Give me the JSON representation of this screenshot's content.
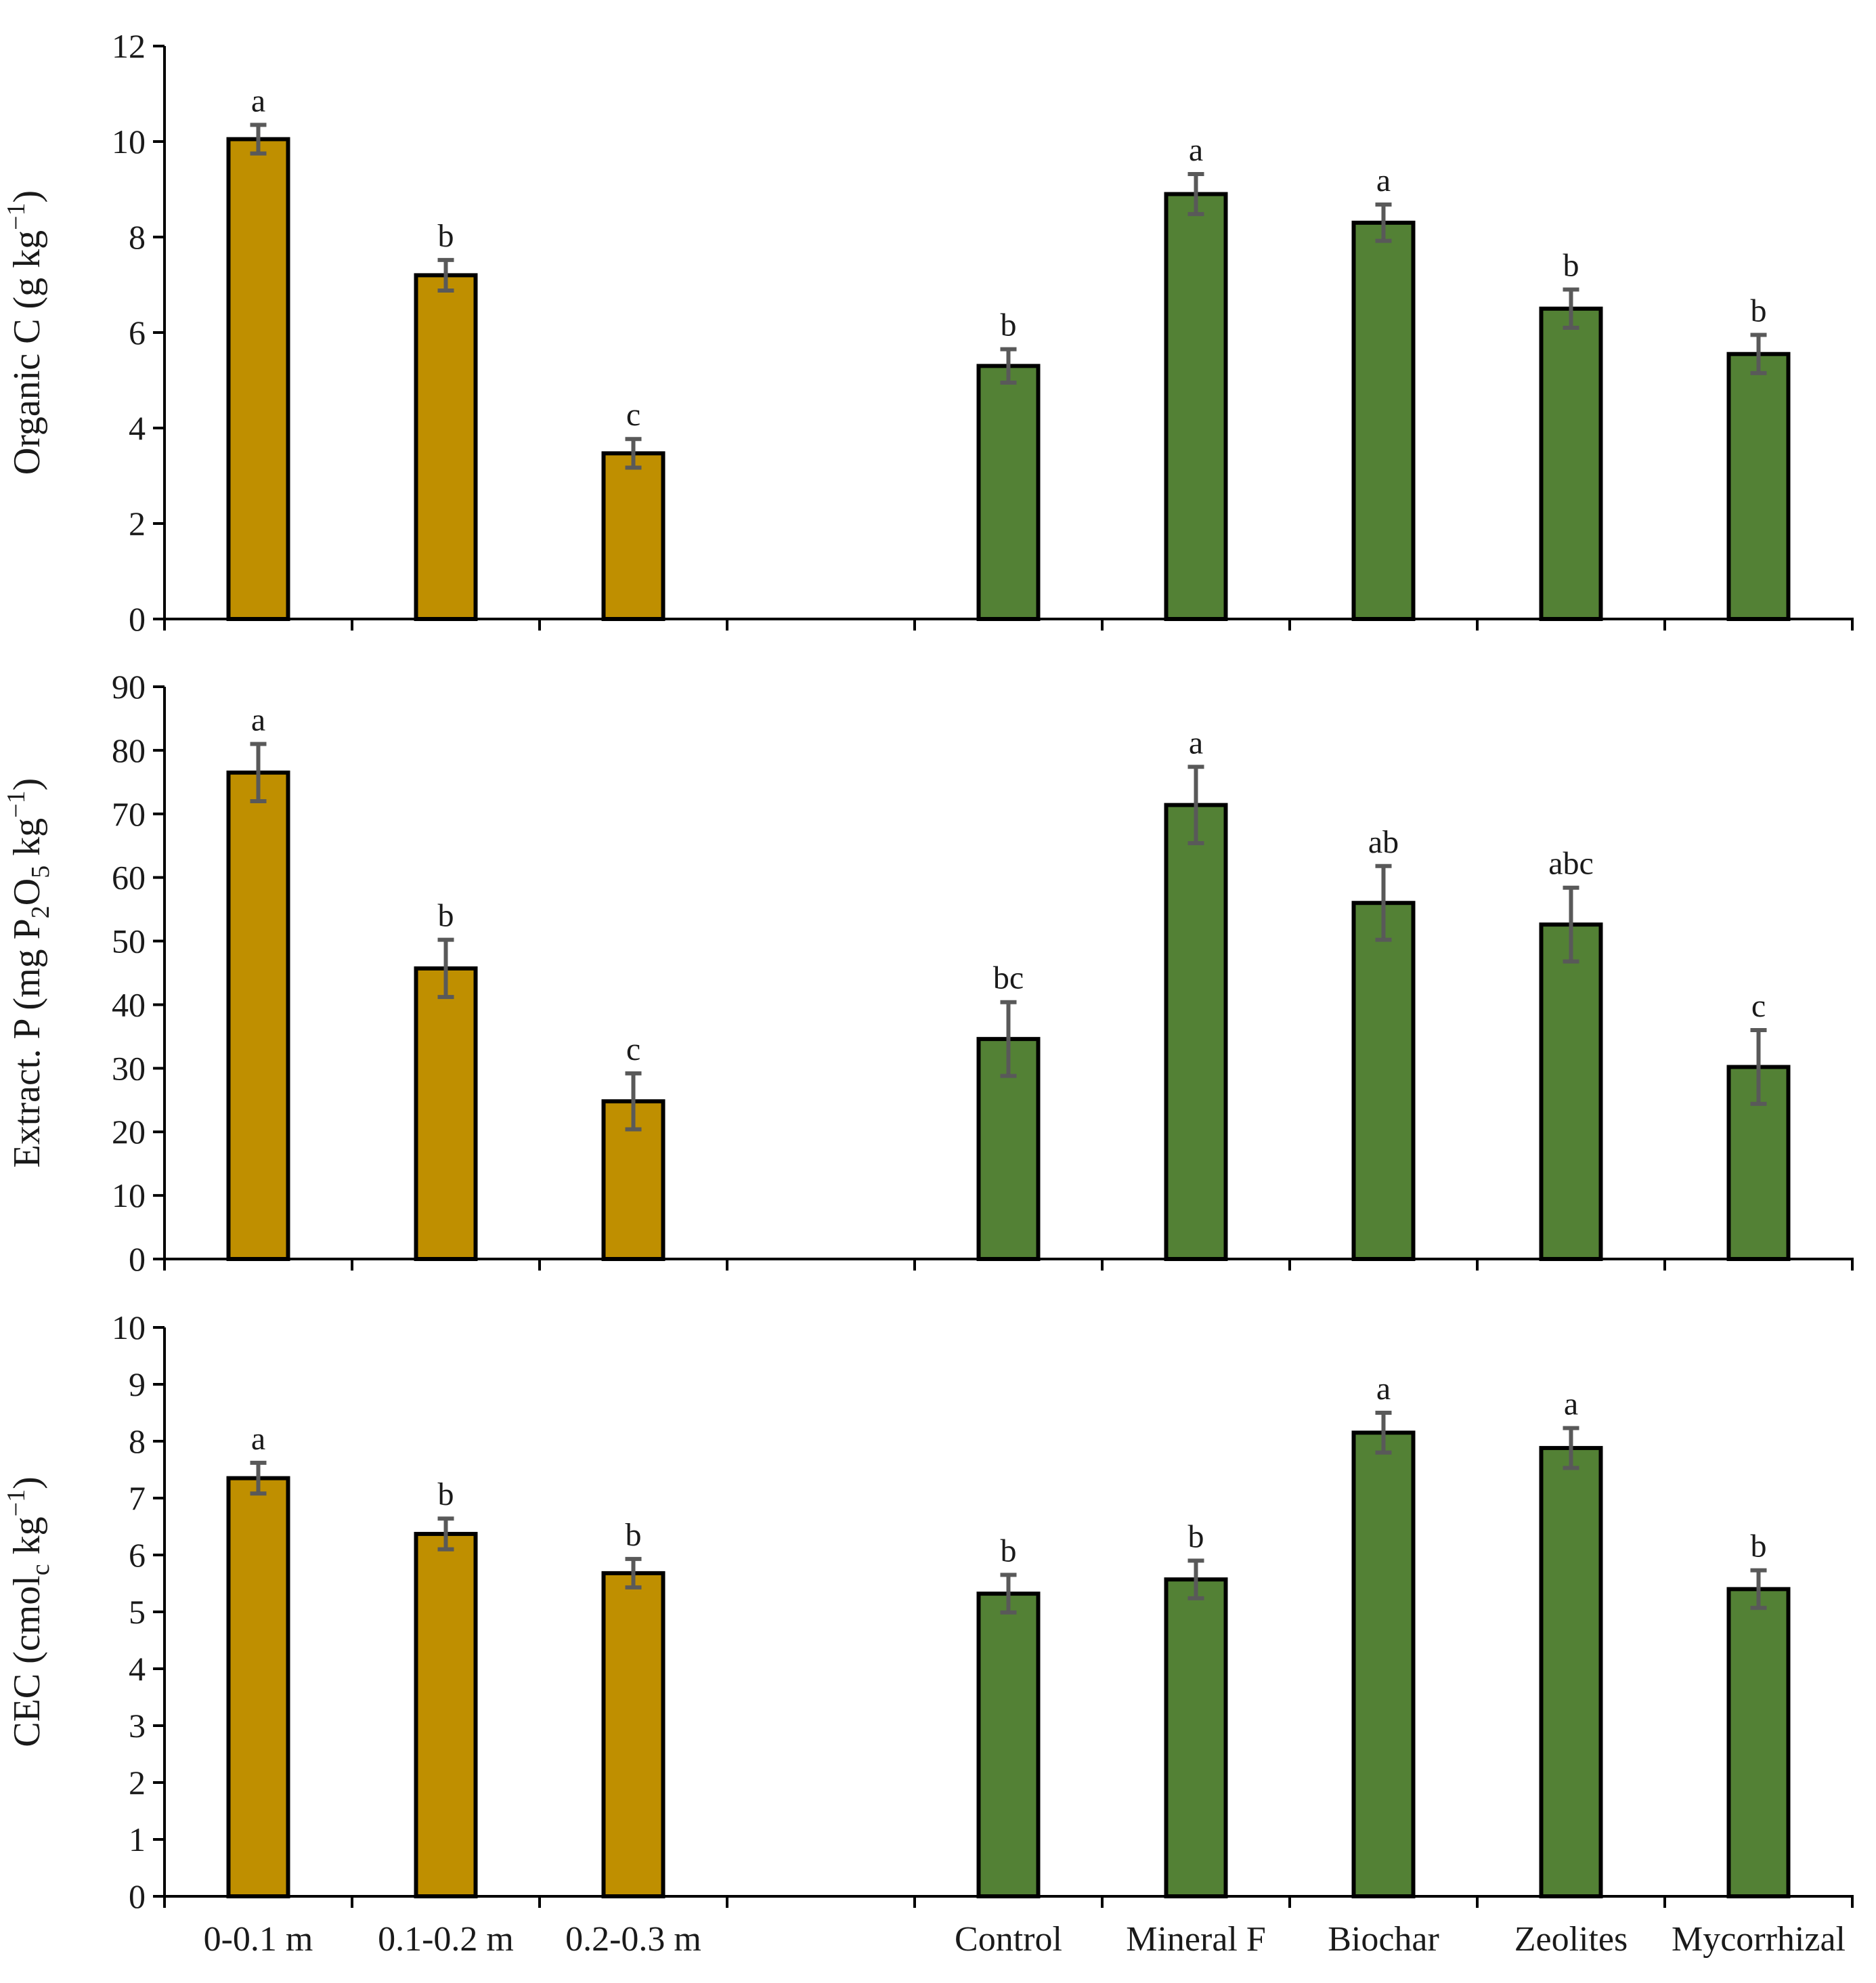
{
  "chart_data": [
    {
      "type": "bar",
      "title": "",
      "xlabel": "",
      "ylabel": {
        "base": "Organic C (g kg",
        "sup": "−1",
        "tail": ")"
      },
      "ylim": [
        0,
        12
      ],
      "yticks": [
        0,
        2,
        4,
        6,
        8,
        10,
        12
      ],
      "categories": [
        "0-0.1 m",
        "0.1-0.2 m",
        "0.2-0.3 m",
        "",
        "Control",
        "Mineral F",
        "Biochar",
        "Zeolites",
        "Mycorrhizal"
      ],
      "values": [
        10.05,
        7.2,
        3.47,
        null,
        5.3,
        8.9,
        8.3,
        6.5,
        5.55
      ],
      "errors": [
        0.3,
        0.32,
        0.3,
        null,
        0.35,
        0.42,
        0.38,
        0.4,
        0.4
      ],
      "significance": [
        "a",
        "b",
        "c",
        "",
        "b",
        "a",
        "a",
        "b",
        "b"
      ],
      "groups": [
        "depth",
        "depth",
        "depth",
        "",
        "treatment",
        "treatment",
        "treatment",
        "treatment",
        "treatment"
      ]
    },
    {
      "type": "bar",
      "title": "",
      "xlabel": "",
      "ylabel": {
        "base": "Extract. P (mg P",
        "sub1": "2",
        "mid": "O",
        "sub2": "5",
        "tail": " kg",
        "sup": "−1",
        "end": ")"
      },
      "ylim": [
        0,
        90
      ],
      "yticks": [
        0,
        10,
        20,
        30,
        40,
        50,
        60,
        70,
        80,
        90
      ],
      "categories": [
        "0-0.1 m",
        "0.1-0.2 m",
        "0.2-0.3 m",
        "",
        "Control",
        "Mineral F",
        "Biochar",
        "Zeolites",
        "Mycorrhizal"
      ],
      "values": [
        76.5,
        45.7,
        24.8,
        null,
        34.6,
        71.4,
        56.0,
        52.6,
        30.2
      ],
      "errors": [
        4.5,
        4.5,
        4.4,
        null,
        5.8,
        6.0,
        5.8,
        5.8,
        5.8
      ],
      "significance": [
        "a",
        "b",
        "c",
        "",
        "bc",
        "a",
        "ab",
        "abc",
        "c"
      ],
      "groups": [
        "depth",
        "depth",
        "depth",
        "",
        "treatment",
        "treatment",
        "treatment",
        "treatment",
        "treatment"
      ]
    },
    {
      "type": "bar",
      "title": "",
      "xlabel": "",
      "ylabel": {
        "base": "CEC (cmol",
        "sub1": "c",
        "tail": " kg",
        "sup": "−1",
        "end": ")"
      },
      "ylim": [
        0,
        10
      ],
      "yticks": [
        0,
        1,
        2,
        3,
        4,
        5,
        6,
        7,
        8,
        9,
        10
      ],
      "categories": [
        "0-0.1 m",
        "0.1-0.2 m",
        "0.2-0.3 m",
        "",
        "Control",
        "Mineral F",
        "Biochar",
        "Zeolites",
        "Mycorrhizal"
      ],
      "values": [
        7.35,
        6.37,
        5.68,
        null,
        5.32,
        5.57,
        8.15,
        7.88,
        5.4
      ],
      "errors": [
        0.27,
        0.27,
        0.25,
        null,
        0.33,
        0.33,
        0.35,
        0.35,
        0.33
      ],
      "significance": [
        "a",
        "b",
        "b",
        "",
        "b",
        "b",
        "a",
        "a",
        "b"
      ],
      "groups": [
        "depth",
        "depth",
        "depth",
        "",
        "treatment",
        "treatment",
        "treatment",
        "treatment",
        "treatment"
      ]
    }
  ],
  "x_axis_labels": [
    "0-0.1 m",
    "0.1-0.2 m",
    "0.2-0.3 m",
    "Control",
    "Mineral F",
    "Biochar",
    "Zeolites",
    "Mycorrhizal"
  ],
  "colors": {
    "depth": "#bf8f00",
    "treatment": "#538135",
    "outline": "#000000",
    "axis": "#000000",
    "error_bar": "#595959"
  }
}
